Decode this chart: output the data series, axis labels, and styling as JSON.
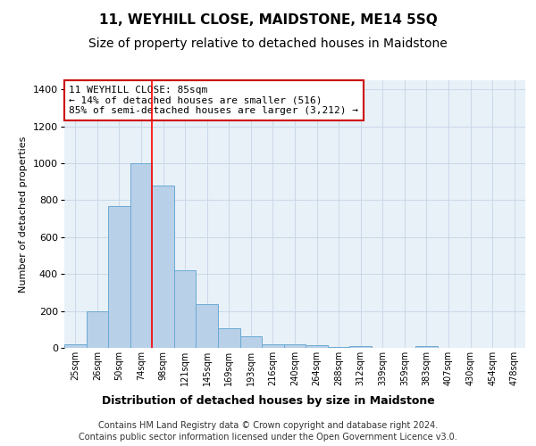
{
  "title": "11, WEYHILL CLOSE, MAIDSTONE, ME14 5SQ",
  "subtitle": "Size of property relative to detached houses in Maidstone",
  "xlabel": "Distribution of detached houses by size in Maidstone",
  "ylabel": "Number of detached properties",
  "categories": [
    "25sqm",
    "26sqm",
    "50sqm",
    "74sqm",
    "98sqm",
    "121sqm",
    "145sqm",
    "169sqm",
    "193sqm",
    "216sqm",
    "240sqm",
    "264sqm",
    "288sqm",
    "312sqm",
    "339sqm",
    "359sqm",
    "383sqm",
    "407sqm",
    "430sqm",
    "454sqm",
    "478sqm"
  ],
  "values": [
    20,
    200,
    770,
    1000,
    880,
    420,
    235,
    105,
    65,
    20,
    20,
    15,
    5,
    10,
    0,
    0,
    10,
    0,
    0,
    0,
    0
  ],
  "bar_color": "#b8d0e8",
  "bar_edge_color": "#6aaad4",
  "red_line_x": 3.5,
  "annotation_text": "11 WEYHILL CLOSE: 85sqm\n← 14% of detached houses are smaller (516)\n85% of semi-detached houses are larger (3,212) →",
  "annotation_box_color": "#ffffff",
  "annotation_box_edge_color": "#cc0000",
  "ylim": [
    0,
    1450
  ],
  "yticks": [
    0,
    200,
    400,
    600,
    800,
    1000,
    1200,
    1400
  ],
  "footer_line1": "Contains HM Land Registry data © Crown copyright and database right 2024.",
  "footer_line2": "Contains public sector information licensed under the Open Government Licence v3.0.",
  "bg_color": "#e8f0f8",
  "title_fontsize": 11,
  "subtitle_fontsize": 10,
  "xlabel_fontsize": 9,
  "ylabel_fontsize": 8,
  "footer_fontsize": 7,
  "annotation_fontsize": 8
}
